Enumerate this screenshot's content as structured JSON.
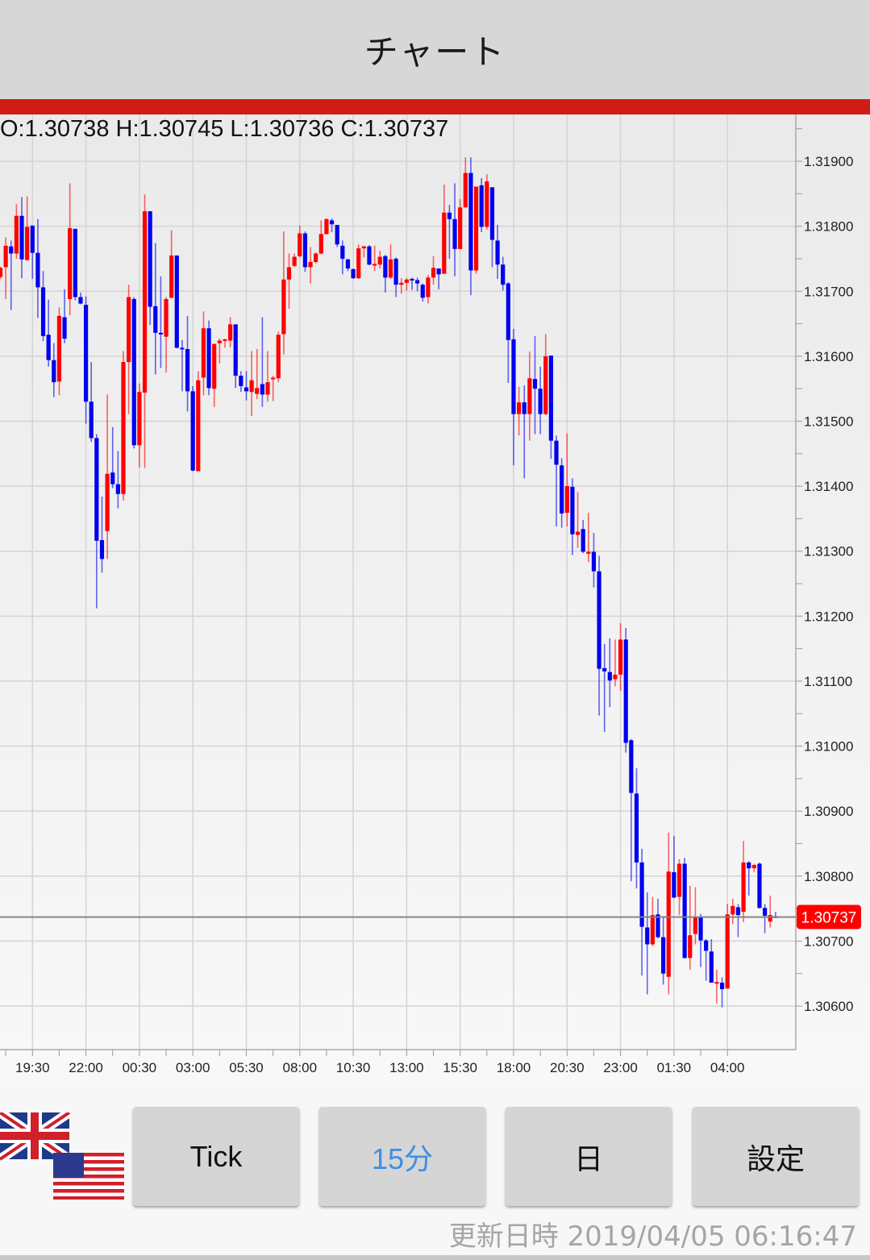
{
  "header": {
    "title": "チャート"
  },
  "colors": {
    "header_bg": "#d7d7d7",
    "accent_bar": "#cf1d14",
    "up": "#ff0000",
    "down": "#0000ee",
    "price_tag": "#ff0000",
    "active_button_text": "#3d8fe3"
  },
  "ohlc_readout": "O:1.30738 H:1.30745 L:1.30736 C:1.30737",
  "pair_icons": [
    "uk-flag-icon",
    "us-flag-icon"
  ],
  "buttons": [
    {
      "label": "Tick",
      "active": false
    },
    {
      "label": "15分",
      "active": true
    },
    {
      "label": "日",
      "active": false
    },
    {
      "label": "設定",
      "active": false
    }
  ],
  "updated": "更新日時 2019/04/05 06:16:47",
  "chart_data": {
    "type": "candlestick",
    "interval": "15分",
    "up_color": "red",
    "down_color": "blue",
    "grid": true,
    "current_price": "1.30737",
    "ylim": [
      1.30533,
      1.31972
    ],
    "y_ticks": [
      "1.31900",
      "1.31800",
      "1.31700",
      "1.31600",
      "1.31500",
      "1.31400",
      "1.31300",
      "1.31200",
      "1.31100",
      "1.31000",
      "1.30900",
      "1.30800",
      "1.30700",
      "1.30600"
    ],
    "x_ticks": [
      "19:30",
      "22:00",
      "00:30",
      "03:00",
      "05:30",
      "08:00",
      "10:30",
      "13:00",
      "15:30",
      "18:00",
      "20:30",
      "23:00",
      "01:30",
      "04:00"
    ],
    "candle_fields": [
      "open",
      "high",
      "low",
      "close"
    ],
    "candles": [
      [
        1.31722,
        1.31738,
        1.31719,
        1.31736
      ],
      [
        1.31737,
        1.31783,
        1.31688,
        1.3177
      ],
      [
        1.31769,
        1.31778,
        1.31671,
        1.31758
      ],
      [
        1.31758,
        1.31834,
        1.3175,
        1.31816
      ],
      [
        1.31816,
        1.31845,
        1.3172,
        1.31749
      ],
      [
        1.31748,
        1.31846,
        1.31747,
        1.31799
      ],
      [
        1.31801,
        1.31801,
        1.31719,
        1.31759
      ],
      [
        1.31759,
        1.31811,
        1.31659,
        1.31706
      ],
      [
        1.31706,
        1.31731,
        1.31623,
        1.31631
      ],
      [
        1.31633,
        1.31687,
        1.31584,
        1.31594
      ],
      [
        1.31594,
        1.3162,
        1.31537,
        1.3156
      ],
      [
        1.31561,
        1.31675,
        1.3154,
        1.31662
      ],
      [
        1.3166,
        1.31703,
        1.3162,
        1.31627
      ],
      [
        1.31688,
        1.31866,
        1.31663,
        1.31797
      ],
      [
        1.31796,
        1.31796,
        1.31686,
        1.31691
      ],
      [
        1.31691,
        1.31698,
        1.3168,
        1.31681
      ],
      [
        1.31679,
        1.31692,
        1.31496,
        1.3153
      ],
      [
        1.3153,
        1.31591,
        1.31468,
        1.31474
      ],
      [
        1.31474,
        1.3148,
        1.31212,
        1.31316
      ],
      [
        1.31317,
        1.31384,
        1.31267,
        1.31288
      ],
      [
        1.31331,
        1.31541,
        1.31288,
        1.31419
      ],
      [
        1.31421,
        1.31491,
        1.31397,
        1.31403
      ],
      [
        1.31403,
        1.31454,
        1.31366,
        1.31388
      ],
      [
        1.31388,
        1.31608,
        1.31378,
        1.31591
      ],
      [
        1.31591,
        1.3171,
        1.31511,
        1.31691
      ],
      [
        1.31688,
        1.31691,
        1.31458,
        1.31463
      ],
      [
        1.31463,
        1.31558,
        1.31429,
        1.31545
      ],
      [
        1.31544,
        1.31849,
        1.31428,
        1.31823
      ],
      [
        1.31823,
        1.31823,
        1.31648,
        1.31676
      ],
      [
        1.31677,
        1.31774,
        1.31572,
        1.31636
      ],
      [
        1.31636,
        1.31723,
        1.31582,
        1.31634
      ],
      [
        1.3163,
        1.31691,
        1.31575,
        1.31688
      ],
      [
        1.3169,
        1.31794,
        1.31689,
        1.31755
      ],
      [
        1.31755,
        1.31755,
        1.31612,
        1.31613
      ],
      [
        1.31613,
        1.31625,
        1.31546,
        1.31611
      ],
      [
        1.31611,
        1.31662,
        1.31515,
        1.31546
      ],
      [
        1.31546,
        1.31554,
        1.31423,
        1.31424
      ],
      [
        1.31423,
        1.31577,
        1.31423,
        1.31563
      ],
      [
        1.31567,
        1.31669,
        1.3154,
        1.31643
      ],
      [
        1.31643,
        1.31655,
        1.3154,
        1.31551
      ],
      [
        1.3155,
        1.31619,
        1.31522,
        1.31619
      ],
      [
        1.3162,
        1.31627,
        1.31589,
        1.31624
      ],
      [
        1.31624,
        1.31627,
        1.31613,
        1.31626
      ],
      [
        1.31624,
        1.3166,
        1.31614,
        1.31649
      ],
      [
        1.31649,
        1.31649,
        1.31551,
        1.3157
      ],
      [
        1.3157,
        1.31577,
        1.31545,
        1.31554
      ],
      [
        1.31552,
        1.31577,
        1.31532,
        1.31546
      ],
      [
        1.31545,
        1.31608,
        1.31508,
        1.31563
      ],
      [
        1.31542,
        1.31611,
        1.31534,
        1.31551
      ],
      [
        1.31557,
        1.3166,
        1.31522,
        1.31541
      ],
      [
        1.31541,
        1.31608,
        1.3153,
        1.3156
      ],
      [
        1.31565,
        1.3157,
        1.31531,
        1.31567
      ],
      [
        1.31566,
        1.31638,
        1.3156,
        1.31633
      ],
      [
        1.31634,
        1.31792,
        1.31603,
        1.31718
      ],
      [
        1.31718,
        1.31758,
        1.31673,
        1.31737
      ],
      [
        1.31739,
        1.31758,
        1.31737,
        1.31753
      ],
      [
        1.31754,
        1.31801,
        1.31752,
        1.31789
      ],
      [
        1.31789,
        1.31792,
        1.3173,
        1.31737
      ],
      [
        1.31737,
        1.31768,
        1.31712,
        1.31745
      ],
      [
        1.31745,
        1.3176,
        1.31743,
        1.31758
      ],
      [
        1.31758,
        1.31809,
        1.31757,
        1.31788
      ],
      [
        1.31788,
        1.31812,
        1.31787,
        1.31811
      ],
      [
        1.31809,
        1.31812,
        1.31791,
        1.31803
      ],
      [
        1.31802,
        1.31802,
        1.31768,
        1.31772
      ],
      [
        1.3177,
        1.31778,
        1.31726,
        1.3175
      ],
      [
        1.31749,
        1.3175,
        1.31731,
        1.31735
      ],
      [
        1.31734,
        1.31735,
        1.31719,
        1.3172
      ],
      [
        1.3172,
        1.31772,
        1.31719,
        1.31766
      ],
      [
        1.31766,
        1.3177,
        1.31752,
        1.31769
      ],
      [
        1.31769,
        1.31771,
        1.3174,
        1.31741
      ],
      [
        1.3174,
        1.3177,
        1.31731,
        1.31742
      ],
      [
        1.31741,
        1.31762,
        1.31735,
        1.31753
      ],
      [
        1.31754,
        1.31756,
        1.31698,
        1.31721
      ],
      [
        1.31721,
        1.31772,
        1.31719,
        1.31749
      ],
      [
        1.3175,
        1.31752,
        1.31691,
        1.3171
      ],
      [
        1.3171,
        1.3172,
        1.31696,
        1.31713
      ],
      [
        1.31713,
        1.3172,
        1.31701,
        1.31718
      ],
      [
        1.31719,
        1.31721,
        1.31702,
        1.31718
      ],
      [
        1.31717,
        1.31721,
        1.317,
        1.31712
      ],
      [
        1.3171,
        1.31712,
        1.31684,
        1.3169
      ],
      [
        1.31691,
        1.31725,
        1.31681,
        1.31721
      ],
      [
        1.31721,
        1.31754,
        1.3171,
        1.31736
      ],
      [
        1.31735,
        1.31735,
        1.31703,
        1.31726
      ],
      [
        1.31727,
        1.31864,
        1.31726,
        1.31821
      ],
      [
        1.31821,
        1.31833,
        1.3175,
        1.31811
      ],
      [
        1.31811,
        1.31866,
        1.31723,
        1.31765
      ],
      [
        1.31765,
        1.31842,
        1.31765,
        1.31829
      ],
      [
        1.31829,
        1.31906,
        1.31829,
        1.31882
      ],
      [
        1.31882,
        1.31906,
        1.31694,
        1.31732
      ],
      [
        1.31732,
        1.31861,
        1.31727,
        1.31861
      ],
      [
        1.31863,
        1.31874,
        1.31791,
        1.31799
      ],
      [
        1.31799,
        1.3188,
        1.31795,
        1.31869
      ],
      [
        1.3186,
        1.3186,
        1.31737,
        1.31779
      ],
      [
        1.31778,
        1.31802,
        1.31719,
        1.31741
      ],
      [
        1.31741,
        1.31753,
        1.31701,
        1.3171
      ],
      [
        1.31712,
        1.31714,
        1.31559,
        1.31625
      ],
      [
        1.31626,
        1.31642,
        1.31432,
        1.31511
      ],
      [
        1.31511,
        1.31553,
        1.31478,
        1.31529
      ],
      [
        1.31529,
        1.31555,
        1.31412,
        1.31511
      ],
      [
        1.31511,
        1.31607,
        1.3147,
        1.31566
      ],
      [
        1.31565,
        1.31631,
        1.3148,
        1.3155
      ],
      [
        1.3155,
        1.31584,
        1.3148,
        1.31511
      ],
      [
        1.31511,
        1.31634,
        1.31509,
        1.316
      ],
      [
        1.31601,
        1.31601,
        1.31442,
        1.3147
      ],
      [
        1.3147,
        1.31478,
        1.31338,
        1.31433
      ],
      [
        1.31432,
        1.31443,
        1.31336,
        1.31358
      ],
      [
        1.31359,
        1.31481,
        1.31338,
        1.314
      ],
      [
        1.31399,
        1.31412,
        1.31294,
        1.31326
      ],
      [
        1.31325,
        1.31391,
        1.31305,
        1.3133
      ],
      [
        1.31334,
        1.31348,
        1.31297,
        1.31299
      ],
      [
        1.31296,
        1.31359,
        1.31283,
        1.31299
      ],
      [
        1.31299,
        1.31328,
        1.31244,
        1.31269
      ],
      [
        1.31269,
        1.31293,
        1.31047,
        1.31119
      ],
      [
        1.3112,
        1.31157,
        1.31022,
        1.31115
      ],
      [
        1.31114,
        1.31166,
        1.3106,
        1.31101
      ],
      [
        1.31103,
        1.31164,
        1.31092,
        1.3111
      ],
      [
        1.3111,
        1.31189,
        1.31085,
        1.31164
      ],
      [
        1.31164,
        1.31182,
        1.3099,
        1.31005
      ],
      [
        1.31009,
        1.31011,
        1.30792,
        1.30928
      ],
      [
        1.30927,
        1.30966,
        1.30781,
        1.30821
      ],
      [
        1.30821,
        1.30842,
        1.30647,
        1.30722
      ],
      [
        1.30721,
        1.30775,
        1.30618,
        1.30695
      ],
      [
        1.30695,
        1.30768,
        1.30692,
        1.3074
      ],
      [
        1.30741,
        1.30765,
        1.30704,
        1.30706
      ],
      [
        1.30706,
        1.30738,
        1.30633,
        1.3065
      ],
      [
        1.30645,
        1.30867,
        1.30618,
        1.30807
      ],
      [
        1.30806,
        1.30862,
        1.30766,
        1.30767
      ],
      [
        1.30768,
        1.30826,
        1.3074,
        1.30819
      ],
      [
        1.30819,
        1.30828,
        1.30673,
        1.30674
      ],
      [
        1.30674,
        1.30785,
        1.30656,
        1.30709
      ],
      [
        1.30711,
        1.30783,
        1.30695,
        1.30736
      ],
      [
        1.30736,
        1.30742,
        1.3066,
        1.30701
      ],
      [
        1.30701,
        1.30703,
        1.30639,
        1.30685
      ],
      [
        1.30684,
        1.30703,
        1.30636,
        1.30636
      ],
      [
        1.30636,
        1.30656,
        1.30604,
        1.30637
      ],
      [
        1.30636,
        1.30644,
        1.30598,
        1.30626
      ],
      [
        1.30627,
        1.30757,
        1.30627,
        1.30741
      ],
      [
        1.30741,
        1.30765,
        1.30726,
        1.30754
      ],
      [
        1.30752,
        1.30757,
        1.30706,
        1.3074
      ],
      [
        1.30745,
        1.30854,
        1.30729,
        1.30821
      ],
      [
        1.30821,
        1.30823,
        1.3077,
        1.30812
      ],
      [
        1.30812,
        1.30819,
        1.30806,
        1.30817
      ],
      [
        1.30819,
        1.30821,
        1.3075,
        1.30751
      ],
      [
        1.30751,
        1.30757,
        1.30712,
        1.30739
      ],
      [
        1.3073,
        1.3077,
        1.30721,
        1.3074
      ],
      [
        1.30738,
        1.30745,
        1.30736,
        1.30737
      ]
    ]
  }
}
